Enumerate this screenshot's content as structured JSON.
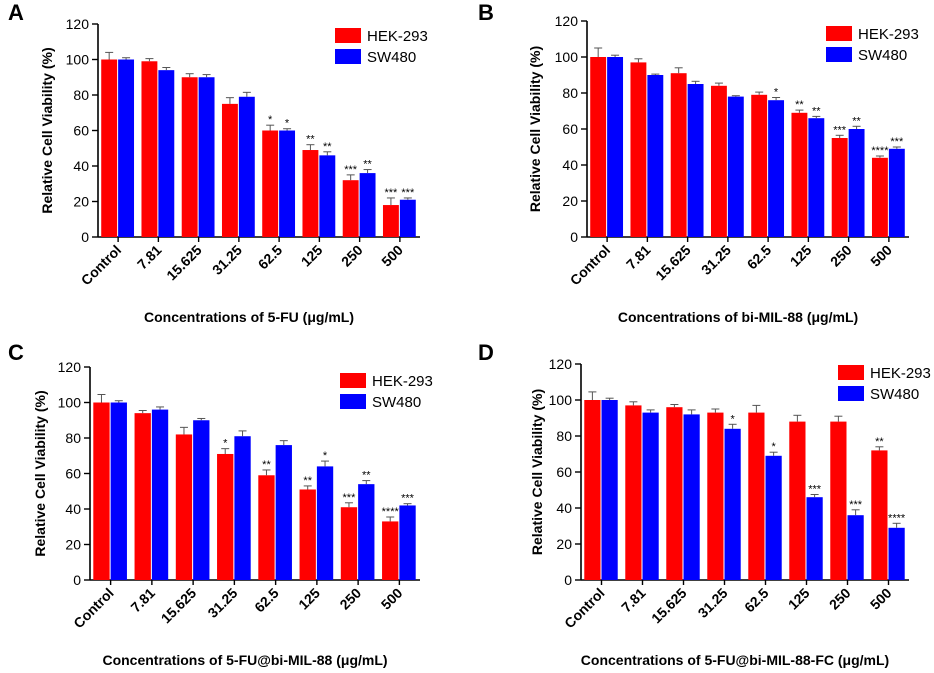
{
  "colors": {
    "hek": "#ff0000",
    "sw": "#0000ff",
    "axis": "#000000"
  },
  "chart_data": [
    {
      "panel": "A",
      "type": "bar",
      "title": "",
      "xlabel": "Concentrations of 5-FU (μg/mL)",
      "ylabel": "Relative Cell Viability (%)",
      "ylim": [
        0,
        120
      ],
      "yticks": [
        "0",
        "20",
        "40",
        "60",
        "80",
        "100",
        "120"
      ],
      "categories": [
        "Control",
        "7.81",
        "15.625",
        "31.25",
        "62.5",
        "125",
        "250",
        "500"
      ],
      "series": [
        {
          "name": "HEK-293",
          "values": [
            100,
            99,
            90,
            75,
            60,
            49,
            32,
            18
          ],
          "errors": [
            4,
            1.5,
            2,
            3.5,
            3,
            3,
            3,
            4
          ],
          "sig": [
            "",
            "",
            "",
            "",
            "*",
            "**",
            "***",
            "***"
          ]
        },
        {
          "name": "SW480",
          "values": [
            100,
            94,
            90,
            79,
            60,
            46,
            36,
            21
          ],
          "errors": [
            1,
            1.5,
            1.5,
            2.5,
            1,
            2,
            2,
            1
          ],
          "sig": [
            "",
            "",
            "",
            "",
            "*",
            "**",
            "**",
            "***"
          ]
        }
      ],
      "legend": "top-right"
    },
    {
      "panel": "B",
      "type": "bar",
      "title": "",
      "xlabel": "Concentrations of bi-MIL-88 (μg/mL)",
      "ylabel": "Relative Cell Viability (%)",
      "ylim": [
        0,
        120
      ],
      "yticks": [
        "0",
        "20",
        "40",
        "60",
        "80",
        "100",
        "120"
      ],
      "categories": [
        "Control",
        "7.81",
        "15.625",
        "31.25",
        "62.5",
        "125",
        "250",
        "500"
      ],
      "series": [
        {
          "name": "HEK-293",
          "values": [
            100,
            97,
            91,
            84,
            79,
            69,
            55,
            44
          ],
          "errors": [
            5,
            2,
            3,
            1.5,
            1.5,
            1.5,
            1.5,
            1
          ],
          "sig": [
            "",
            "",
            "",
            "",
            "",
            "**",
            "***",
            "****"
          ]
        },
        {
          "name": "SW480",
          "values": [
            100,
            90,
            85,
            78,
            76,
            66,
            60,
            49
          ],
          "errors": [
            1,
            0.5,
            1.5,
            0.5,
            1.5,
            1,
            1.5,
            1
          ],
          "sig": [
            "",
            "",
            "",
            "",
            "*",
            "**",
            "**",
            "***"
          ]
        }
      ],
      "legend": "top-right"
    },
    {
      "panel": "C",
      "type": "bar",
      "title": "",
      "xlabel": "Concentrations of 5-FU@bi-MIL-88 (μg/mL)",
      "ylabel": "Relative Cell Viability (%)",
      "ylim": [
        0,
        120
      ],
      "yticks": [
        "0",
        "20",
        "40",
        "60",
        "80",
        "100",
        "120"
      ],
      "categories": [
        "Control",
        "7.81",
        "15.625",
        "31.25",
        "62.5",
        "125",
        "250",
        "500"
      ],
      "series": [
        {
          "name": "HEK-293",
          "values": [
            100,
            94,
            82,
            71,
            59,
            51,
            41,
            33
          ],
          "errors": [
            4.5,
            1.5,
            4,
            3,
            3,
            2,
            2.5,
            2.5
          ],
          "sig": [
            "",
            "",
            "",
            "*",
            "**",
            "**",
            "***",
            "****"
          ]
        },
        {
          "name": "SW480",
          "values": [
            100,
            96,
            90,
            81,
            76,
            64,
            54,
            42
          ],
          "errors": [
            1,
            1.5,
            1,
            3,
            2.5,
            3,
            2,
            1
          ],
          "sig": [
            "",
            "",
            "",
            "",
            "",
            "*",
            "**",
            "***"
          ]
        }
      ],
      "legend": "top-right"
    },
    {
      "panel": "D",
      "type": "bar",
      "title": "",
      "xlabel": "Concentrations of 5-FU@bi-MIL-88-FC (μg/mL)",
      "ylabel": "Relative Cell Viability (%)",
      "ylim": [
        0,
        120
      ],
      "yticks": [
        "0",
        "20",
        "40",
        "60",
        "80",
        "100",
        "120"
      ],
      "categories": [
        "Control",
        "7.81",
        "15.625",
        "31.25",
        "62.5",
        "125",
        "250",
        "500"
      ],
      "series": [
        {
          "name": "HEK-293",
          "values": [
            100,
            97,
            96,
            93,
            93,
            88,
            88,
            72
          ],
          "errors": [
            4.5,
            2,
            1.5,
            2,
            4,
            3.5,
            3,
            2
          ],
          "sig": [
            "",
            "",
            "",
            "",
            "",
            "",
            "",
            "**"
          ]
        },
        {
          "name": "SW480",
          "values": [
            100,
            93,
            92,
            84,
            69,
            46,
            36,
            29
          ],
          "errors": [
            1,
            1.5,
            2.5,
            2.5,
            2,
            1.5,
            3,
            2.5
          ],
          "sig": [
            "",
            "",
            "",
            "*",
            "*",
            "***",
            "***",
            "****"
          ]
        }
      ],
      "legend": "top-right"
    }
  ]
}
